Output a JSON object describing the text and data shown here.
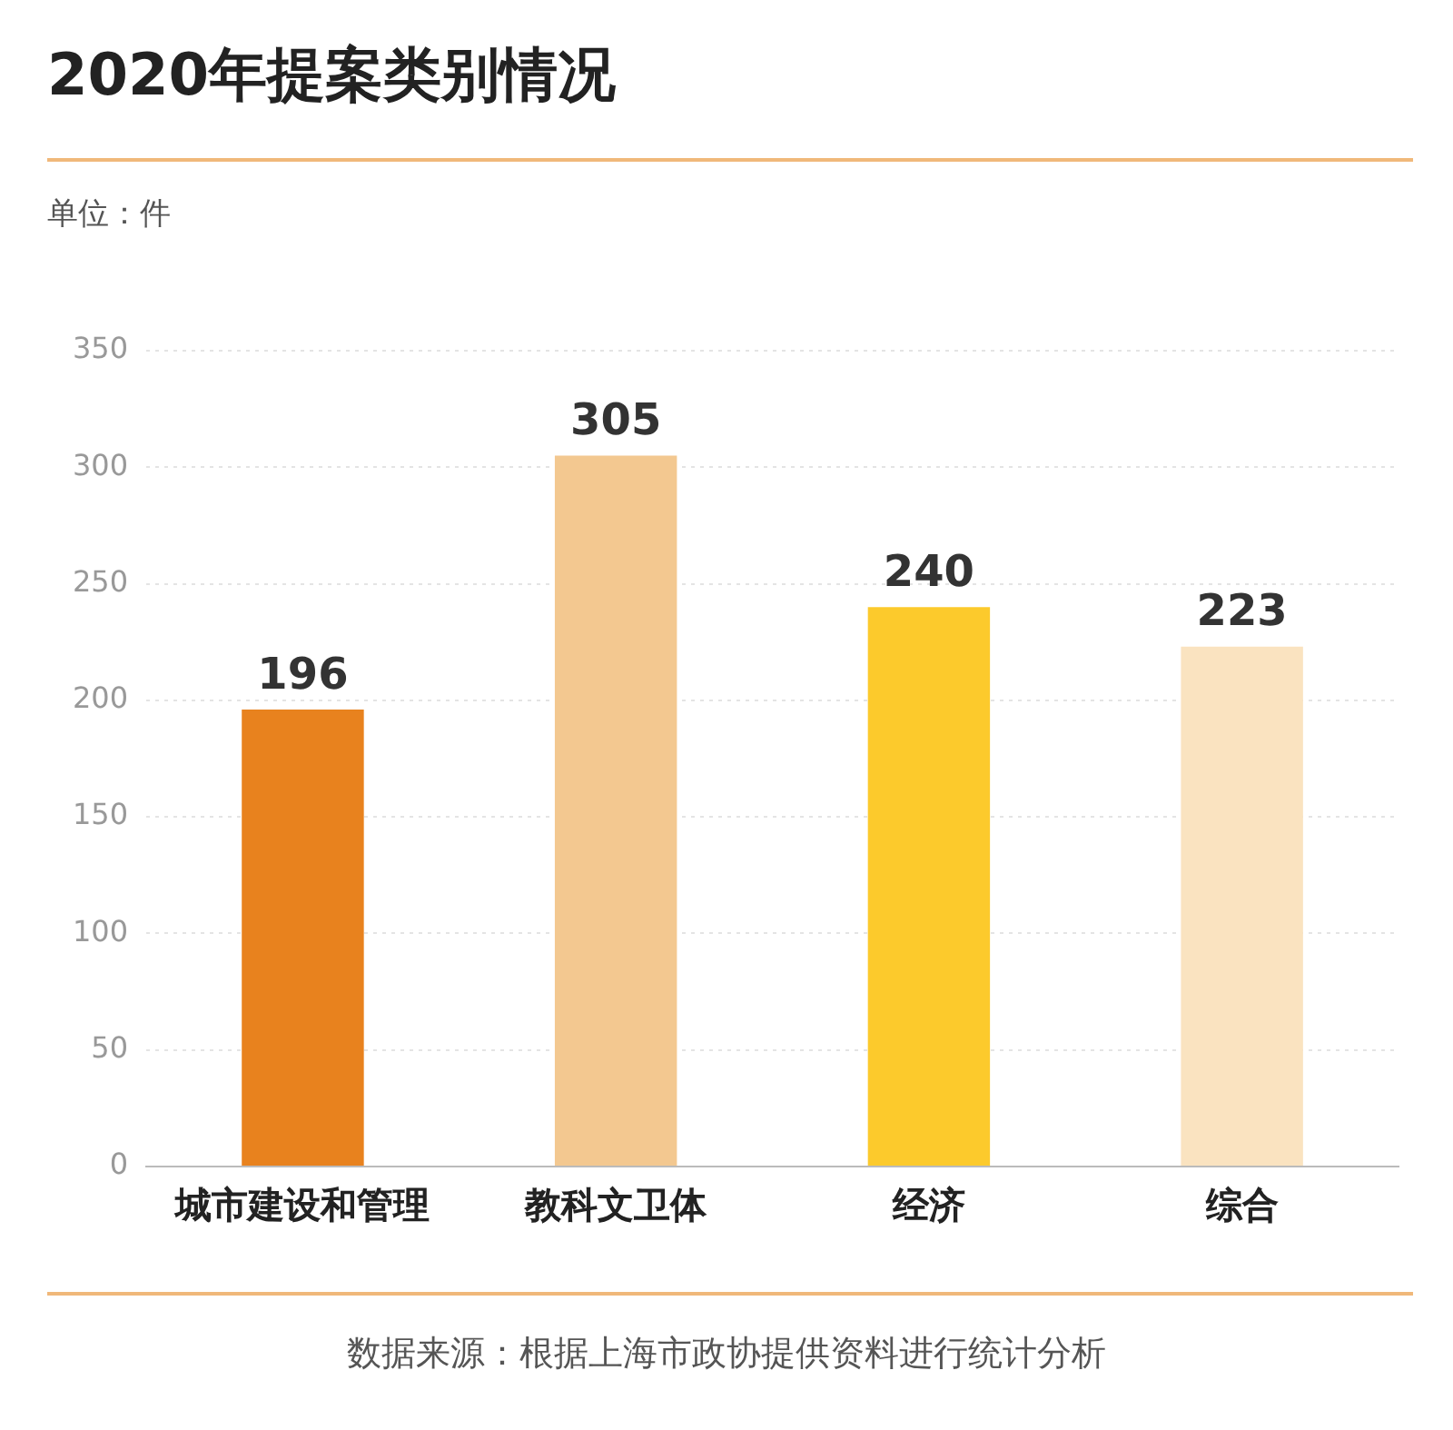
{
  "chart_data": {
    "type": "bar",
    "title": "2020年提案类别情况",
    "ylabel": "单位：件",
    "categories": [
      "城市建设和管理",
      "教科文卫体",
      "经济",
      "综合"
    ],
    "values": [
      196,
      305,
      240,
      223
    ],
    "colors": [
      "#e8821e",
      "#f3c890",
      "#fcca2c",
      "#fae3c0"
    ],
    "ylim": [
      0,
      350
    ],
    "yticks": [
      0,
      50,
      100,
      150,
      200,
      250,
      300,
      350
    ],
    "grid": "y",
    "data_labels": true,
    "legend": false,
    "annotations": [
      "数据来源：根据上海市政协提供资料进行统计分析"
    ]
  }
}
